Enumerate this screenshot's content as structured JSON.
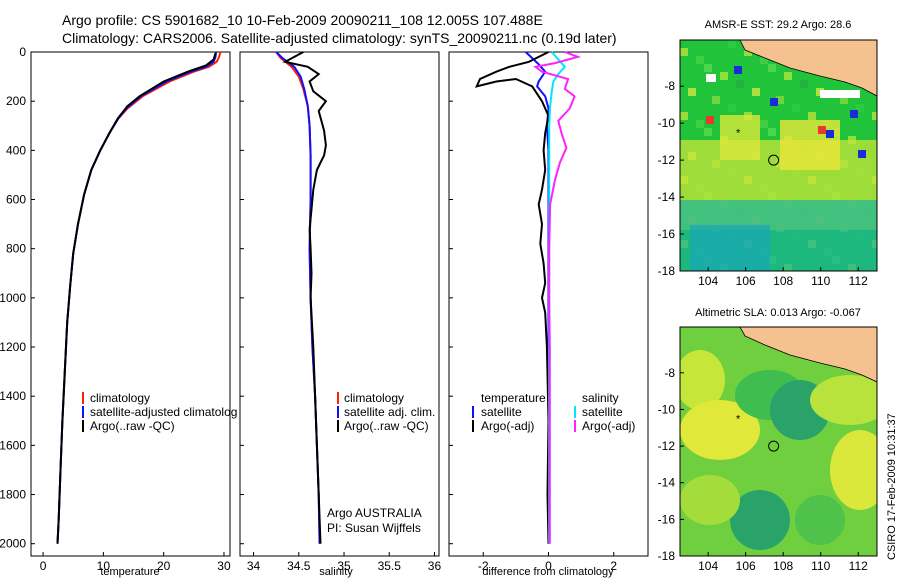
{
  "header": {
    "line1": "Argo profile: CS 5901682_10 10-Feb-2009 20090211_108 12.005S 107.488E",
    "line2": "Climatology: CARS2006. Satellite-adjusted climatology: synTS_20090211.nc (0.19d later)"
  },
  "side_label": "CSIRO 17-Feb-2009 10:31:37",
  "colors": {
    "climatology": "#ff2200",
    "satellite": "#1010ff",
    "argo": "#000000",
    "sal_satellite": "#00e5ff",
    "sal_argo": "#ff22ff",
    "land": "#f5c28f"
  },
  "chart_data": [
    {
      "type": "line",
      "id": "temperature",
      "xlabel": "temperature",
      "xlim": [
        -2,
        31
      ],
      "ylim": [
        2050,
        0
      ],
      "xticks": [
        0,
        10,
        20,
        30
      ],
      "yticks": [
        0,
        200,
        400,
        600,
        800,
        1000,
        1200,
        1400,
        1600,
        1800,
        2000
      ],
      "ytick_labels": [
        "0",
        "200",
        "400",
        "600",
        "800",
        "1000",
        "1200",
        "1400",
        "1600",
        "1800",
        "2000"
      ],
      "legend": [
        "climatology",
        "satellite-adjusted climatolog",
        "Argo(..raw -QC)"
      ],
      "series": [
        {
          "name": "climatology",
          "color_key": "climatology",
          "points": [
            [
              29.4,
              0
            ],
            [
              29.2,
              20
            ],
            [
              28.8,
              40
            ],
            [
              27.5,
              60
            ],
            [
              25,
              80
            ],
            [
              21,
              120
            ],
            [
              16.5,
              180
            ],
            [
              14,
              230
            ],
            [
              12.5,
              270
            ],
            [
              11,
              330
            ],
            [
              9.5,
              400
            ],
            [
              8,
              480
            ],
            [
              6.8,
              580
            ],
            [
              5.8,
              700
            ],
            [
              5,
              820
            ],
            [
              4.5,
              950
            ],
            [
              4,
              1100
            ],
            [
              3.6,
              1300
            ],
            [
              3.2,
              1500
            ],
            [
              2.9,
              1700
            ],
            [
              2.6,
              1900
            ],
            [
              2.4,
              2000
            ]
          ]
        },
        {
          "name": "satellite-adjusted climatolog",
          "color_key": "satellite",
          "points": [
            [
              28.7,
              0
            ],
            [
              28.6,
              20
            ],
            [
              28.3,
              40
            ],
            [
              27,
              60
            ],
            [
              24.5,
              80
            ],
            [
              20.5,
              120
            ],
            [
              16.2,
              180
            ],
            [
              13.8,
              230
            ],
            [
              12.5,
              270
            ],
            [
              11,
              330
            ],
            [
              9.5,
              400
            ],
            [
              8,
              480
            ],
            [
              6.8,
              580
            ],
            [
              5.8,
              700
            ],
            [
              5,
              820
            ],
            [
              4.5,
              950
            ],
            [
              4,
              1100
            ],
            [
              3.6,
              1300
            ],
            [
              3.2,
              1500
            ],
            [
              2.9,
              1700
            ],
            [
              2.6,
              1900
            ],
            [
              2.4,
              2000
            ]
          ]
        },
        {
          "name": "Argo(..raw -QC)",
          "color_key": "argo",
          "points": [
            [
              28.6,
              5
            ],
            [
              28.3,
              30
            ],
            [
              27,
              55
            ],
            [
              24,
              80
            ],
            [
              20,
              120
            ],
            [
              16,
              180
            ],
            [
              14,
              220
            ],
            [
              12.4,
              270
            ],
            [
              11,
              330
            ],
            [
              9.5,
              400
            ],
            [
              8,
              480
            ],
            [
              6.8,
              580
            ],
            [
              5.8,
              700
            ],
            [
              5,
              820
            ],
            [
              4.5,
              950
            ],
            [
              4,
              1100
            ],
            [
              3.6,
              1300
            ],
            [
              3.2,
              1500
            ],
            [
              2.9,
              1700
            ],
            [
              2.6,
              1900
            ],
            [
              2.4,
              2000
            ]
          ]
        }
      ]
    },
    {
      "type": "line",
      "id": "salinity",
      "xlabel": "salinity",
      "xlim": [
        33.85,
        36.05
      ],
      "ylim": [
        2050,
        0
      ],
      "xticks": [
        34,
        34.5,
        35,
        35.5,
        36
      ],
      "xtick_labels": [
        "34",
        "34.5",
        "35",
        "35.5",
        "36"
      ],
      "legend": [
        "climatology",
        "satellite adj. clim.",
        "Argo(..raw -QC)"
      ],
      "annotation": [
        "Argo AUSTRALIA",
        "PI: Susan Wijffels"
      ],
      "series": [
        {
          "name": "climatology",
          "color_key": "climatology",
          "points": [
            [
              34.25,
              0
            ],
            [
              34.3,
              25
            ],
            [
              34.42,
              60
            ],
            [
              34.5,
              100
            ],
            [
              34.55,
              150
            ],
            [
              34.6,
              220
            ],
            [
              34.62,
              300
            ],
            [
              34.63,
              420
            ],
            [
              34.63,
              600
            ],
            [
              34.62,
              800
            ],
            [
              34.63,
              1000
            ],
            [
              34.65,
              1200
            ],
            [
              34.68,
              1400
            ],
            [
              34.7,
              1600
            ],
            [
              34.72,
              1800
            ],
            [
              34.73,
              2000
            ]
          ]
        },
        {
          "name": "satellite adj. clim.",
          "color_key": "satellite",
          "points": [
            [
              34.25,
              0
            ],
            [
              34.32,
              25
            ],
            [
              34.45,
              60
            ],
            [
              34.52,
              100
            ],
            [
              34.56,
              150
            ],
            [
              34.6,
              220
            ],
            [
              34.62,
              300
            ],
            [
              34.63,
              420
            ],
            [
              34.63,
              600
            ],
            [
              34.62,
              800
            ],
            [
              34.63,
              1000
            ],
            [
              34.65,
              1200
            ],
            [
              34.68,
              1400
            ],
            [
              34.7,
              1600
            ],
            [
              34.72,
              1800
            ],
            [
              34.73,
              2000
            ]
          ]
        },
        {
          "name": "Argo(..raw -QC)",
          "color_key": "argo",
          "points": [
            [
              34.55,
              0
            ],
            [
              34.45,
              20
            ],
            [
              34.35,
              40
            ],
            [
              34.6,
              60
            ],
            [
              34.72,
              90
            ],
            [
              34.62,
              120
            ],
            [
              34.66,
              160
            ],
            [
              34.8,
              200
            ],
            [
              34.72,
              240
            ],
            [
              34.75,
              280
            ],
            [
              34.78,
              320
            ],
            [
              34.8,
              380
            ],
            [
              34.78,
              420
            ],
            [
              34.7,
              480
            ],
            [
              34.66,
              560
            ],
            [
              34.64,
              640
            ],
            [
              34.62,
              720
            ],
            [
              34.63,
              800
            ],
            [
              34.64,
              900
            ],
            [
              34.63,
              1000
            ],
            [
              34.66,
              1200
            ],
            [
              34.68,
              1400
            ],
            [
              34.7,
              1600
            ],
            [
              34.72,
              1800
            ],
            [
              34.74,
              2000
            ]
          ]
        }
      ]
    },
    {
      "type": "line",
      "id": "difference",
      "xlabel": "difference from climatology",
      "xlim": [
        -3.05,
        3.05
      ],
      "ylim": [
        2050,
        0
      ],
      "xticks": [
        -2,
        0,
        2
      ],
      "legend_left": [
        "temperature",
        "satellite",
        "Argo(-adj)"
      ],
      "legend_right": [
        "salinity",
        "satellite",
        "Argo(-adj)"
      ],
      "series": [
        {
          "name": "temperature satellite",
          "color_key": "satellite",
          "points": [
            [
              -0.7,
              0
            ],
            [
              -0.5,
              25
            ],
            [
              -0.3,
              50
            ],
            [
              -0.1,
              80
            ],
            [
              -0.3,
              120
            ],
            [
              -0.35,
              140
            ],
            [
              -0.1,
              180
            ],
            [
              0,
              230
            ],
            [
              -0.05,
              300
            ],
            [
              0,
              400
            ],
            [
              0,
              600
            ],
            [
              0,
              1000
            ],
            [
              0,
              1500
            ],
            [
              0,
              2000
            ]
          ]
        },
        {
          "name": "temperature Argo(-adj)",
          "color_key": "argo",
          "points": [
            [
              0,
              0
            ],
            [
              -0.3,
              20
            ],
            [
              -0.6,
              40
            ],
            [
              -1.2,
              60
            ],
            [
              -1.6,
              80
            ],
            [
              -2.1,
              110
            ],
            [
              -2.2,
              140
            ],
            [
              -1.6,
              120
            ],
            [
              -1,
              110
            ],
            [
              -0.5,
              140
            ],
            [
              -0.2,
              200
            ],
            [
              0,
              260
            ],
            [
              -0.1,
              330
            ],
            [
              -0.15,
              400
            ],
            [
              -0.1,
              480
            ],
            [
              -0.2,
              560
            ],
            [
              -0.3,
              620
            ],
            [
              -0.2,
              700
            ],
            [
              -0.25,
              780
            ],
            [
              -0.15,
              860
            ],
            [
              -0.1,
              940
            ],
            [
              -0.2,
              1000
            ],
            [
              -0.1,
              1060
            ],
            [
              -0.05,
              1200
            ],
            [
              0,
              1500
            ],
            [
              -0.03,
              1800
            ],
            [
              0,
              2000
            ]
          ]
        },
        {
          "name": "salinity satellite",
          "color_key": "sal_satellite",
          "points": [
            [
              0.1,
              0
            ],
            [
              0.3,
              30
            ],
            [
              0.5,
              60
            ],
            [
              0.3,
              90
            ],
            [
              0.15,
              120
            ],
            [
              0.1,
              160
            ],
            [
              0.05,
              220
            ],
            [
              0.02,
              300
            ],
            [
              0.02,
              500
            ],
            [
              0.02,
              1000
            ],
            [
              0.02,
              1500
            ],
            [
              0.02,
              2000
            ]
          ]
        },
        {
          "name": "salinity Argo(-adj)",
          "color_key": "sal_argo",
          "points": [
            [
              0.5,
              0
            ],
            [
              0.9,
              20
            ],
            [
              0.2,
              45
            ],
            [
              -0.4,
              60
            ],
            [
              -0.2,
              80
            ],
            [
              0.6,
              110
            ],
            [
              0.5,
              150
            ],
            [
              0.8,
              180
            ],
            [
              0.65,
              230
            ],
            [
              0.3,
              280
            ],
            [
              0.4,
              330
            ],
            [
              0.55,
              390
            ],
            [
              0.35,
              450
            ],
            [
              0.2,
              520
            ],
            [
              0.05,
              620
            ],
            [
              0.02,
              800
            ],
            [
              0.02,
              1000
            ],
            [
              0.04,
              1200
            ],
            [
              0.04,
              1400
            ],
            [
              0.04,
              1600
            ],
            [
              0.04,
              1800
            ],
            [
              0.04,
              2000
            ]
          ]
        }
      ]
    },
    {
      "type": "heatmap",
      "id": "sst_map",
      "title": "AMSR-E SST: 29.2 Argo: 28.6",
      "xlim": [
        102.5,
        113
      ],
      "ylim": [
        -18,
        -5.5
      ],
      "xticks": [
        104,
        106,
        108,
        110,
        112
      ],
      "yticks": [
        -8,
        -10,
        -12,
        -14,
        -16,
        -18
      ],
      "argo_marker": [
        107.49,
        -12.0
      ],
      "star_marker": [
        105.6,
        -10.5
      ]
    },
    {
      "type": "heatmap",
      "id": "sla_map",
      "title": "Altimetric SLA: 0.013 Argo: -0.067",
      "xlim": [
        102.5,
        113
      ],
      "ylim": [
        -18,
        -5.5
      ],
      "xticks": [
        104,
        106,
        108,
        110,
        112
      ],
      "yticks": [
        -8,
        -10,
        -12,
        -14,
        -16,
        -18
      ],
      "argo_marker": [
        107.49,
        -12.0
      ],
      "star_marker": [
        105.6,
        -10.5
      ]
    }
  ]
}
